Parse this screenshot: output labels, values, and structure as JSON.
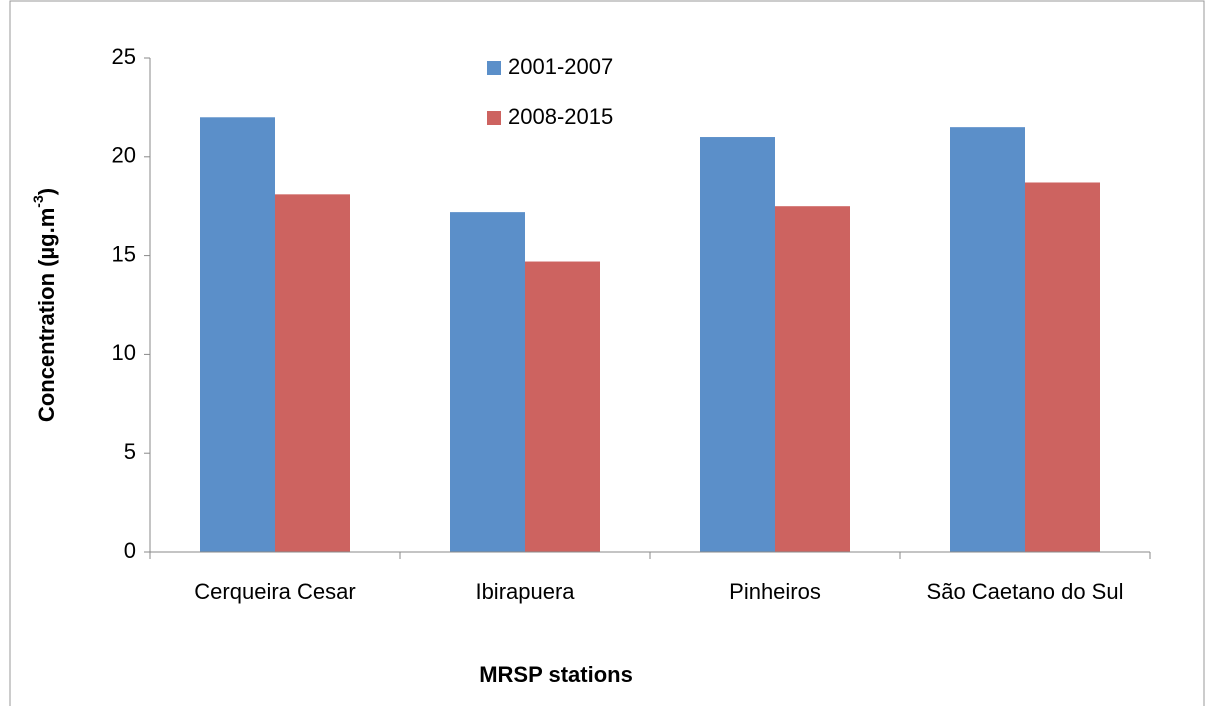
{
  "chart_data": {
    "type": "bar",
    "categories": [
      "Cerqueira Cesar",
      "Ibirapuera",
      "Pinheiros",
      "São Caetano do Sul"
    ],
    "series": [
      {
        "name": "2001-2007",
        "color": "#5b8fc9",
        "values": [
          22.0,
          17.2,
          21.0,
          21.5
        ]
      },
      {
        "name": "2008-2015",
        "color": "#cd6360",
        "values": [
          18.1,
          14.7,
          17.5,
          18.7
        ]
      }
    ],
    "ylim": [
      0,
      25
    ],
    "yticks": [
      0,
      5,
      10,
      15,
      20,
      25
    ],
    "x_label": "MRSP stations",
    "y_label": {
      "text": "Concentration  (µg.m",
      "superscript": "-3",
      "after": ")"
    },
    "grid": false,
    "legend": "top"
  }
}
